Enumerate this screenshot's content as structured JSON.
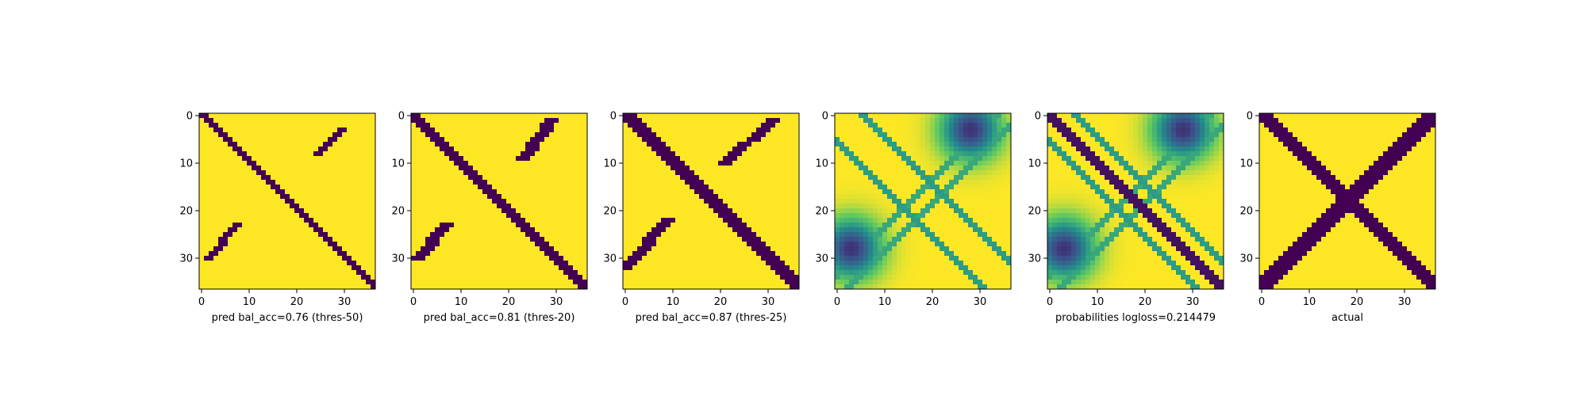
{
  "figure": {
    "background": "#ffffff"
  },
  "colormap": {
    "low": "#440154",
    "high": "#fde725",
    "stops": [
      "#440154",
      "#3b528b",
      "#21918c",
      "#5ec962",
      "#fde725"
    ]
  },
  "chart_data": [
    {
      "type": "heatmap",
      "kind": "binary",
      "matrix_size": 37,
      "title": "",
      "xlabel": "pred bal_acc=0.76 (thres-50)",
      "ylabel": "",
      "xticks": [
        0,
        10,
        20,
        30
      ],
      "yticks": [
        0,
        10,
        20,
        30
      ],
      "main_diagonal": {
        "from": 0,
        "to": 36,
        "width": 2
      },
      "off_blobs": [
        {
          "r1": 3,
          "r2": 8,
          "c_end_start": 30,
          "c_end_end": 25,
          "width": 2
        },
        {
          "r1": 23,
          "r2": 30,
          "c_end_start": 8,
          "c_end_end": 2,
          "width": 2
        }
      ]
    },
    {
      "type": "heatmap",
      "kind": "binary",
      "matrix_size": 37,
      "title": "",
      "xlabel": "pred bal_acc=0.81 (thres-20)",
      "ylabel": "",
      "xticks": [
        0,
        10,
        20,
        30
      ],
      "yticks": [
        0,
        10,
        20,
        30
      ],
      "main_diagonal": {
        "from": 0,
        "to": 36,
        "width": 3
      },
      "off_blobs": [
        {
          "r1": 1,
          "r2": 9,
          "c_end_start": 30,
          "c_end_end": 24,
          "width": 3
        },
        {
          "r1": 23,
          "r2": 30,
          "c_end_start": 8,
          "c_end_end": 2,
          "width": 3
        }
      ]
    },
    {
      "type": "heatmap",
      "kind": "binary",
      "matrix_size": 37,
      "title": "",
      "xlabel": "pred bal_acc=0.87 (thres-25)",
      "ylabel": "",
      "xticks": [
        0,
        10,
        20,
        30
      ],
      "yticks": [
        0,
        10,
        20,
        30
      ],
      "main_diagonal": {
        "from": 0,
        "to": 36,
        "width": 4
      },
      "off_blobs": [
        {
          "r1": 1,
          "r2": 10,
          "c_end_start": 32,
          "c_end_end": 22,
          "width": 3
        },
        {
          "r1": 22,
          "r2": 32,
          "c_end_start": 10,
          "c_end_end": 1,
          "width": 3
        }
      ]
    },
    {
      "type": "heatmap",
      "kind": "probabilities",
      "matrix_size": 37,
      "title": "",
      "xlabel": "",
      "ylabel": "",
      "xticks": [
        0,
        10,
        20,
        30
      ],
      "yticks": [
        0,
        10,
        20,
        30
      ]
    },
    {
      "type": "heatmap",
      "kind": "probabilities_diag",
      "matrix_size": 37,
      "title": "",
      "xlabel": "probabilities logloss=0.214479",
      "ylabel": "",
      "xticks": [
        0,
        10,
        20,
        30
      ],
      "yticks": [
        0,
        10,
        20,
        30
      ]
    },
    {
      "type": "heatmap",
      "kind": "binary_x",
      "matrix_size": 37,
      "title": "",
      "xlabel": "actual",
      "ylabel": "",
      "xticks": [
        0,
        10,
        20,
        30
      ],
      "yticks": [
        0,
        10,
        20,
        30
      ],
      "main_diagonal": {
        "from": 0,
        "to": 36,
        "width": 4
      },
      "anti_diagonal": {
        "width": 3
      }
    }
  ]
}
